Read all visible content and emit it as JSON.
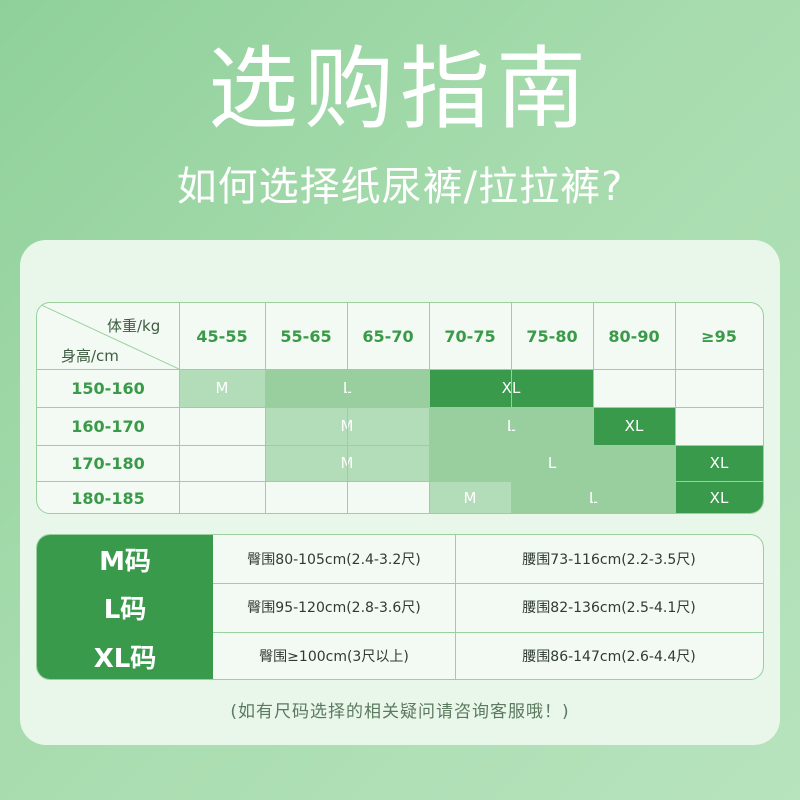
{
  "title": "选购指南",
  "subtitle": "如何选择纸尿裤/拉拉裤?",
  "grid": {
    "weight_label": "体重/kg",
    "height_label": "身高/cm",
    "weights": [
      "45-55",
      "55-65",
      "65-70",
      "70-75",
      "75-80",
      "80-90",
      "≥95"
    ],
    "heights": [
      "150-160",
      "160-170",
      "170-180",
      "180-185"
    ],
    "rows": [
      [
        {
          "size": "M",
          "from": 0,
          "to": 0
        },
        {
          "size": "L",
          "from": 1,
          "to": 2
        },
        {
          "size": "XL",
          "from": 3,
          "to": 4
        }
      ],
      [
        {
          "size": "M",
          "from": 1,
          "to": 2
        },
        {
          "size": "L",
          "from": 3,
          "to": 4
        },
        {
          "size": "XL",
          "from": 5,
          "to": 5
        }
      ],
      [
        {
          "size": "M",
          "from": 1,
          "to": 2
        },
        {
          "size": "L",
          "from": 3,
          "to": 5
        },
        {
          "size": "XL",
          "from": 6,
          "to": 6
        }
      ],
      [
        {
          "size": "M",
          "from": 3,
          "to": 3
        },
        {
          "size": "L",
          "from": 4,
          "to": 5
        },
        {
          "size": "XL",
          "from": 6,
          "to": 6
        }
      ]
    ]
  },
  "sizes": [
    {
      "label": "M码",
      "thigh": "臀围80-105cm(2.4-3.2尺)",
      "waist": "腰围73-116cm(2.2-3.5尺)"
    },
    {
      "label": "L码",
      "thigh": "臀围95-120cm(2.8-3.6尺)",
      "waist": "腰围82-136cm(2.5-4.1尺)"
    },
    {
      "label": "XL码",
      "thigh": "臀围≥100cm(3尺以上)",
      "waist": "腰围86-147cm(2.6-4.4尺)"
    }
  ],
  "note": "(如有尺码选择的相关疑问请咨询客服哦！)",
  "colors": {
    "background": "#a7dcae",
    "panel": "#e9f6ea",
    "accent_dark": "#3a9a4c",
    "band_m": "#b3dcb8",
    "band_l": "#99cf9f",
    "band_xl": "#3a9a4c"
  }
}
